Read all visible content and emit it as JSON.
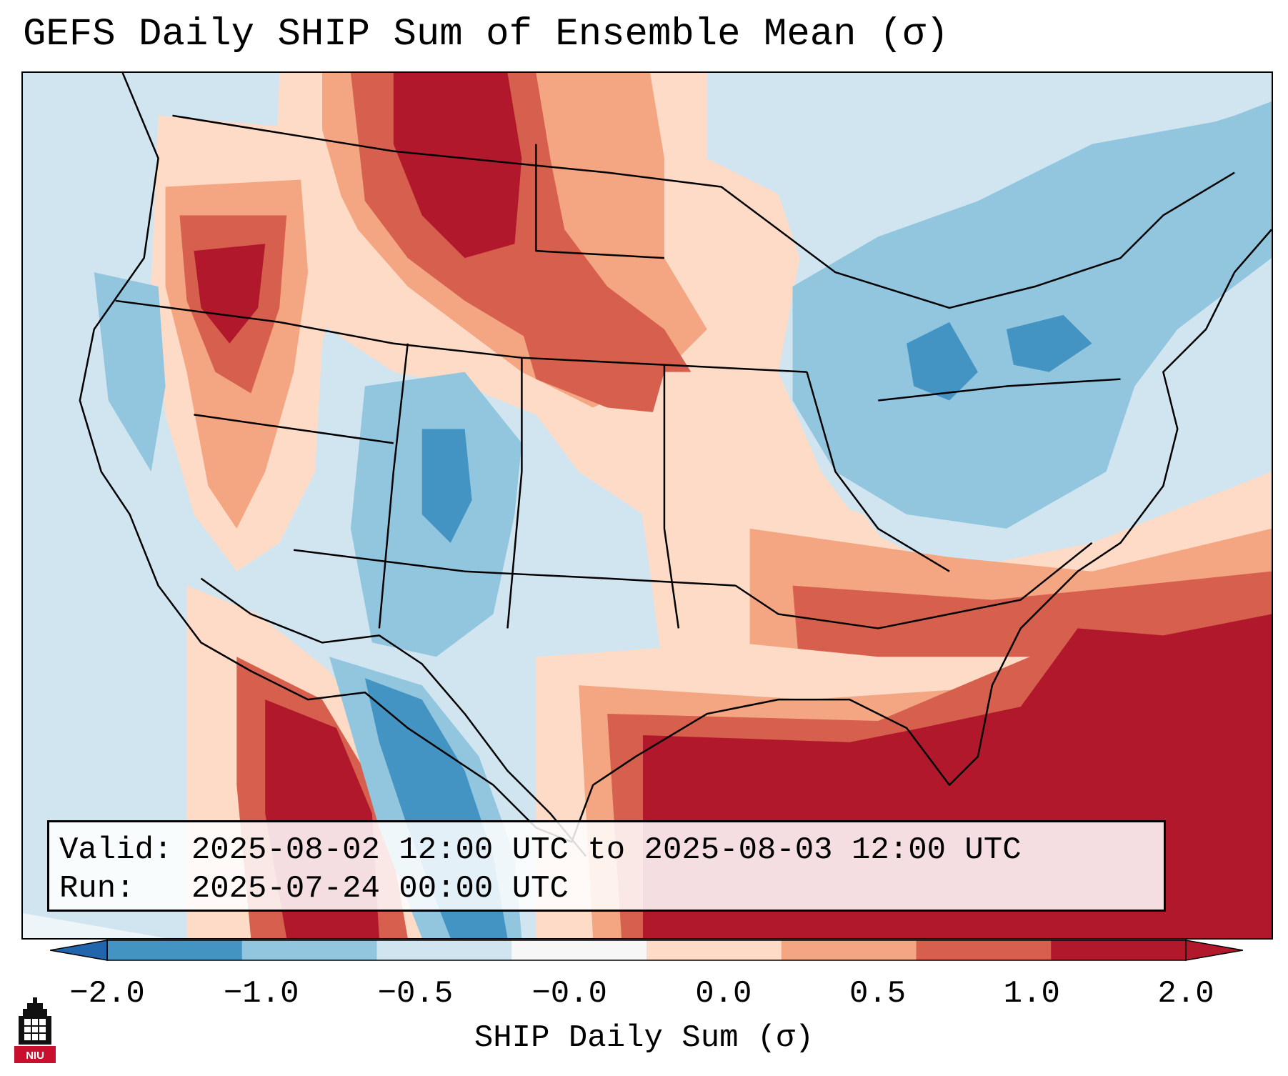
{
  "title": "GEFS Daily SHIP Sum of Ensemble Mean (σ)",
  "info": {
    "valid_label": "Valid:",
    "valid_value": "2025-08-02 12:00 UTC to 2025-08-03 12:00 UTC",
    "run_label": "Run:",
    "run_value": "2025-07-24 00:00 UTC"
  },
  "colorbar": {
    "label": "SHIP Daily Sum (σ)",
    "ticks": [
      "−2.0",
      "−1.0",
      "−0.5",
      "−0.0",
      "0.0",
      "0.5",
      "1.0",
      "2.0"
    ],
    "colors": [
      "#4393c3",
      "#92c5de",
      "#d1e5f0",
      "#f7f7f7",
      "#fddbc7",
      "#f4a582",
      "#d6604d",
      "#b2182b"
    ],
    "extend": "both",
    "under_color": "#2166ac",
    "over_color": "#b2182b"
  },
  "map": {
    "region": "Contiguous United States",
    "color_levels": {
      "strong_negative": "#4393c3",
      "negative": "#92c5de",
      "weak_negative": "#d1e5f0",
      "weak_positive": "#fddbc7",
      "positive": "#f4a582",
      "strong_positive": "#d6604d",
      "very_strong_positive": "#b2182b"
    }
  },
  "logo": {
    "text": "NIU"
  }
}
